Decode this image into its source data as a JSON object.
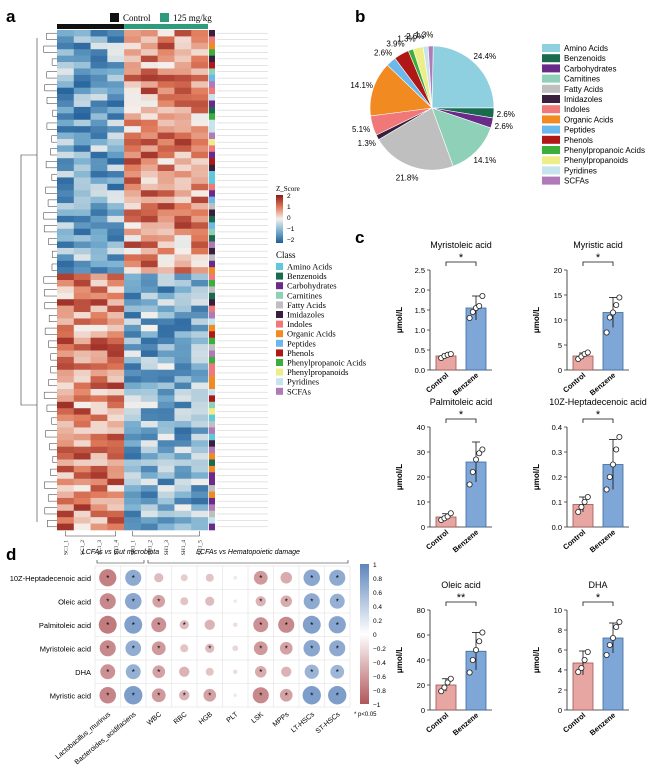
{
  "panels": {
    "a": "a",
    "b": "b",
    "c": "c",
    "d": "d"
  },
  "heatmap": {
    "legend_groups": [
      "Control",
      "125 mg/kg"
    ],
    "group_colors": [
      "#111111",
      "#2e9b7d"
    ],
    "columns": [
      "SC1_1",
      "SC1_2",
      "SC1_3",
      "SC1_4",
      "SH1_1",
      "SH1_2",
      "SH1_3",
      "SH1_4",
      "SH1_5"
    ],
    "zscore_title": "Z_Score",
    "zscore_ticks": [
      "2",
      "1",
      "0",
      "−1",
      "−2"
    ],
    "class_title": "Class",
    "classes": [
      {
        "name": "Amino Acids",
        "color": "#5ec8dc"
      },
      {
        "name": "Benzenoids",
        "color": "#1a6b4e"
      },
      {
        "name": "Carbohydrates",
        "color": "#6a2a8a"
      },
      {
        "name": "Carnitines",
        "color": "#8fd0b8"
      },
      {
        "name": "Fatty Acids",
        "color": "#bfbfbf"
      },
      {
        "name": "Imidazoles",
        "color": "#3a1e3e"
      },
      {
        "name": "Indoles",
        "color": "#f07878"
      },
      {
        "name": "Organic Acids",
        "color": "#f28a22"
      },
      {
        "name": "Peptides",
        "color": "#6ab8ec"
      },
      {
        "name": "Phenols",
        "color": "#b01818"
      },
      {
        "name": "Phenylpropanoic Acids",
        "color": "#3cae3c"
      },
      {
        "name": "Phenylpropanoids",
        "color": "#eeee88"
      },
      {
        "name": "Pyridines",
        "color": "#c6e4ee"
      },
      {
        "name": "SCFAs",
        "color": "#b07ab8"
      }
    ]
  },
  "chart_data": [
    {
      "type": "heatmap",
      "panel": "a",
      "rows": 78,
      "columns": [
        "SC1_1",
        "SC1_2",
        "SC1_3",
        "SC1_4",
        "SH1_1",
        "SH1_2",
        "SH1_3",
        "SH1_4",
        "SH1_5"
      ],
      "scale": "Z_Score",
      "range": [
        -2,
        2
      ]
    },
    {
      "type": "pie",
      "panel": "b",
      "labels": [
        "Amino Acids",
        "Benzenoids",
        "Carbohydrates",
        "Carnitines",
        "Fatty Acids",
        "Imidazoles",
        "Indoles",
        "Organic Acids",
        "Peptides",
        "Phenols",
        "Phenylpropanoic Acids",
        "Phenylpropanoids",
        "Pyridines",
        "SCFAs"
      ],
      "values": [
        24.4,
        2.6,
        2.6,
        14.1,
        21.8,
        1.3,
        5.1,
        14.1,
        2.6,
        3.9,
        1.3,
        2.6,
        1.3,
        1.3
      ],
      "value_labels": [
        "24.4%",
        "2.6%",
        "2.6%",
        "14.1%",
        "21.8%",
        "1.3%",
        "5.1%",
        "14.1%",
        "2.6%",
        "3.9%",
        "1.3%",
        "2.6%",
        "1.3%",
        ""
      ],
      "colors": [
        "#8fd0e0",
        "#1a6b4e",
        "#6a2a8a",
        "#8fd0b8",
        "#bfbfbf",
        "#3a1e3e",
        "#f07878",
        "#f28a22",
        "#6ab8ec",
        "#b01818",
        "#3cae3c",
        "#eeee88",
        "#c6e4ee",
        "#b07ab8"
      ]
    },
    {
      "type": "bar",
      "panel": "c",
      "title": "Myristoleic acid",
      "ylabel": "μmol/L",
      "categories": [
        "Control",
        "Benzene"
      ],
      "values": [
        0.35,
        1.55
      ],
      "errors": [
        0.05,
        0.3
      ],
      "points": [
        [
          0.3,
          0.35,
          0.38,
          0.4
        ],
        [
          1.3,
          1.45,
          1.55,
          1.6,
          1.85
        ]
      ],
      "ylim": [
        0,
        2.5
      ],
      "yticks": [
        "0.0",
        "0.5",
        "1.0",
        "1.5",
        "2.0",
        "2.5"
      ],
      "significance": "*"
    },
    {
      "type": "bar",
      "panel": "c",
      "title": "Myristic acid",
      "ylabel": "μmol/L",
      "categories": [
        "Control",
        "Benzene"
      ],
      "values": [
        2.8,
        11.5
      ],
      "errors": [
        0.6,
        3.0
      ],
      "points": [
        [
          2.2,
          2.7,
          3.2,
          3.5
        ],
        [
          7.5,
          10.5,
          11.5,
          13.0,
          14.5
        ]
      ],
      "ylim": [
        0,
        20
      ],
      "yticks": [
        "0",
        "5",
        "10",
        "15",
        "20"
      ],
      "significance": "*"
    },
    {
      "type": "bar",
      "panel": "c",
      "title": "Palmitoleic acid",
      "ylabel": "μmol/L",
      "categories": [
        "Control",
        "Benzene"
      ],
      "values": [
        4.0,
        26.0
      ],
      "errors": [
        1.3,
        8.0
      ],
      "points": [
        [
          2.8,
          3.5,
          4.2,
          5.5
        ],
        [
          17.0,
          22.0,
          27.0,
          29.5,
          31.0
        ]
      ],
      "ylim": [
        0,
        40
      ],
      "yticks": [
        "0",
        "10",
        "20",
        "30",
        "40"
      ],
      "significance": "*"
    },
    {
      "type": "bar",
      "panel": "c",
      "title": "10Z-Heptadecenoic acid",
      "ylabel": "μmol/L",
      "categories": [
        "Control",
        "Benzene"
      ],
      "values": [
        0.09,
        0.25
      ],
      "errors": [
        0.03,
        0.1
      ],
      "points": [
        [
          0.06,
          0.08,
          0.1,
          0.12
        ],
        [
          0.15,
          0.2,
          0.25,
          0.31,
          0.36
        ]
      ],
      "ylim": [
        0,
        0.4
      ],
      "yticks": [
        "0.0",
        "0.1",
        "0.2",
        "0.3",
        "0.4"
      ],
      "significance": "*"
    },
    {
      "type": "bar",
      "panel": "c",
      "title": "Oleic acid",
      "ylabel": "μmol/L",
      "categories": [
        "Control",
        "Benzene"
      ],
      "values": [
        20.0,
        47.0
      ],
      "errors": [
        5.0,
        15.0
      ],
      "points": [
        [
          15.0,
          18.0,
          22.0,
          25.0
        ],
        [
          30.0,
          40.0,
          48.0,
          55.0,
          62.0
        ]
      ],
      "ylim": [
        0,
        80
      ],
      "yticks": [
        "0",
        "20",
        "40",
        "60",
        "80"
      ],
      "significance": "**"
    },
    {
      "type": "bar",
      "panel": "c",
      "title": "DHA",
      "ylabel": "μmol/L",
      "categories": [
        "Control",
        "Benzene"
      ],
      "values": [
        4.7,
        7.2
      ],
      "errors": [
        1.2,
        1.5
      ],
      "points": [
        [
          3.8,
          4.2,
          5.0,
          5.8
        ],
        [
          5.5,
          6.5,
          7.2,
          8.3,
          8.8
        ]
      ],
      "ylim": [
        0,
        10
      ],
      "yticks": [
        "0",
        "2",
        "4",
        "6",
        "8",
        "10"
      ],
      "significance": "*"
    },
    {
      "type": "heatmap",
      "panel": "d",
      "group_labels": [
        "LCFAs vs Gut microbiota",
        "LCFAs vs Hematopoietic damage"
      ],
      "rows": [
        "10Z-Heptadecenoic acid",
        "Oleic acid",
        "Palmitoleic acid",
        "Myristoleic acid",
        "DHA",
        "Myristic acid"
      ],
      "columns": [
        "Lactobacillus_murinus",
        "Bacteroides_acidifaciens",
        "WBC",
        "RBC",
        "HGB",
        "PLT",
        "LSK",
        "MPPs",
        "LT-HSCs",
        "ST-HSCs"
      ],
      "values": [
        [
          -0.75,
          0.7,
          -0.4,
          -0.3,
          -0.35,
          -0.15,
          -0.6,
          -0.5,
          0.72,
          0.7
        ],
        [
          -0.7,
          0.72,
          -0.55,
          -0.35,
          -0.4,
          -0.15,
          -0.45,
          -0.5,
          0.7,
          0.65
        ],
        [
          -0.78,
          0.78,
          -0.65,
          -0.4,
          -0.45,
          -0.2,
          -0.65,
          -0.7,
          0.78,
          0.75
        ],
        [
          -0.7,
          0.68,
          -0.6,
          -0.35,
          -0.4,
          -0.25,
          -0.6,
          -0.55,
          0.72,
          0.7
        ],
        [
          -0.65,
          0.65,
          -0.55,
          -0.45,
          -0.35,
          -0.2,
          -0.5,
          -0.45,
          0.62,
          0.6
        ],
        [
          -0.72,
          0.8,
          -0.6,
          -0.45,
          -0.55,
          -0.15,
          -0.7,
          -0.55,
          0.8,
          0.8
        ]
      ],
      "significant": [
        [
          1,
          1,
          0,
          0,
          0,
          0,
          1,
          0,
          1,
          1
        ],
        [
          1,
          1,
          1,
          0,
          0,
          0,
          1,
          1,
          1,
          1
        ],
        [
          1,
          1,
          1,
          1,
          0,
          0,
          1,
          1,
          1,
          1
        ],
        [
          1,
          1,
          1,
          0,
          1,
          0,
          1,
          1,
          1,
          1
        ],
        [
          1,
          1,
          1,
          0,
          0,
          0,
          1,
          0,
          1,
          1
        ],
        [
          1,
          1,
          1,
          1,
          1,
          0,
          1,
          1,
          1,
          1
        ]
      ],
      "range": [
        -1,
        1
      ],
      "scale_ticks": [
        "1",
        "0.8",
        "0.6",
        "0.4",
        "0.2",
        "0",
        "−0.2",
        "−0.4",
        "−0.6",
        "−0.8",
        "−1"
      ],
      "note": "* p<0.05"
    }
  ]
}
